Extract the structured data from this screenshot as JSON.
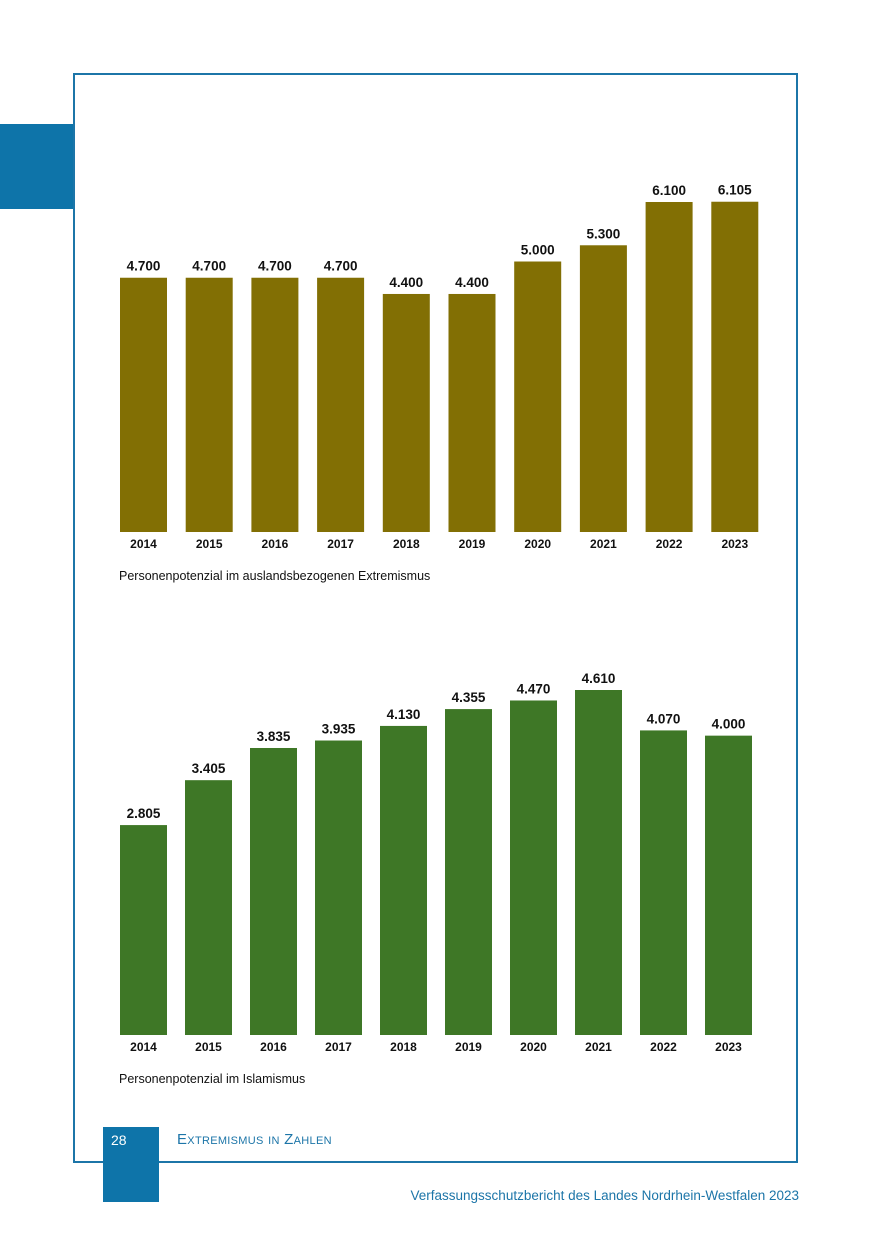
{
  "page": {
    "number": "28",
    "section_title": "Extremismus in Zahlen",
    "footer": "Verfassungsschutzbericht des Landes Nordrhein-Westfalen 2023",
    "accent_color": "#0e74a9"
  },
  "chart_data": [
    {
      "type": "bar",
      "title": "Personenpotenzial im auslandsbezogenen Extremismus",
      "caption": "Personenpotenzial im auslandsbezogenen Extremismus",
      "categories": [
        "2014",
        "2015",
        "2016",
        "2017",
        "2018",
        "2019",
        "2020",
        "2021",
        "2022",
        "2023"
      ],
      "values": [
        4700,
        4700,
        4700,
        4700,
        4400,
        4400,
        5000,
        5300,
        6100,
        6105
      ],
      "value_labels": [
        "4.700",
        "4.700",
        "4.700",
        "4.700",
        "4.400",
        "4.400",
        "5.000",
        "5.300",
        "6.100",
        "6.105"
      ],
      "color": "#826f04",
      "ylim": [
        0,
        6100
      ],
      "xlabel": "",
      "ylabel": "",
      "grid": false
    },
    {
      "type": "bar",
      "title": "Personenpotenzial im Islamismus",
      "caption": "Personenpotenzial im Islamismus",
      "categories": [
        "2014",
        "2015",
        "2016",
        "2017",
        "2018",
        "2019",
        "2020",
        "2021",
        "2022",
        "2023"
      ],
      "values": [
        2805,
        3405,
        3835,
        3935,
        4130,
        4355,
        4470,
        4610,
        4070,
        4000
      ],
      "value_labels": [
        "2.805",
        "3.405",
        "3.835",
        "3.935",
        "4.130",
        "4.355",
        "4.470",
        "4.610",
        "4.070",
        "4.000"
      ],
      "color": "#3e7726",
      "ylim": [
        0,
        4610
      ],
      "xlabel": "",
      "ylabel": "",
      "grid": false
    }
  ]
}
